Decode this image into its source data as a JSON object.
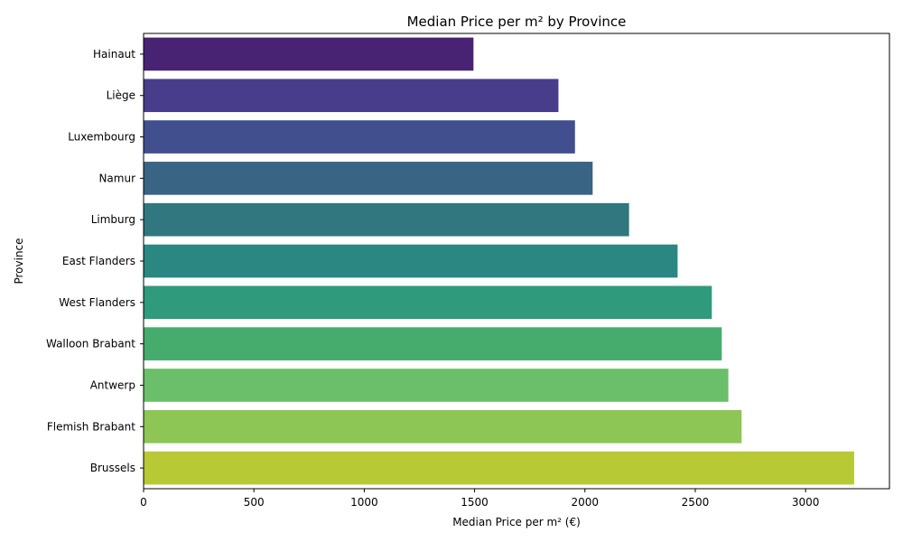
{
  "chart_data": {
    "type": "bar",
    "orientation": "horizontal",
    "title": "Median Price per m² by Province",
    "xlabel": "Median Price per m² (€)",
    "ylabel": "Province",
    "xlim": [
      0,
      3380
    ],
    "xticks": [
      0,
      500,
      1000,
      1500,
      2000,
      2500,
      3000
    ],
    "grid": false,
    "categories": [
      "Hainaut",
      "Liège",
      "Luxembourg",
      "Namur",
      "Limburg",
      "East Flanders",
      "West Flanders",
      "Walloon Brabant",
      "Antwerp",
      "Flemish Brabant",
      "Brussels"
    ],
    "values": [
      1495,
      1880,
      1955,
      2035,
      2200,
      2420,
      2575,
      2620,
      2650,
      2710,
      3220
    ],
    "colors": [
      "#482374",
      "#483d8b",
      "#414f8e",
      "#3a6483",
      "#31777f",
      "#2a8782",
      "#2f9b7c",
      "#45ac6e",
      "#6bbe6a",
      "#8dc654",
      "#b7c935"
    ]
  }
}
